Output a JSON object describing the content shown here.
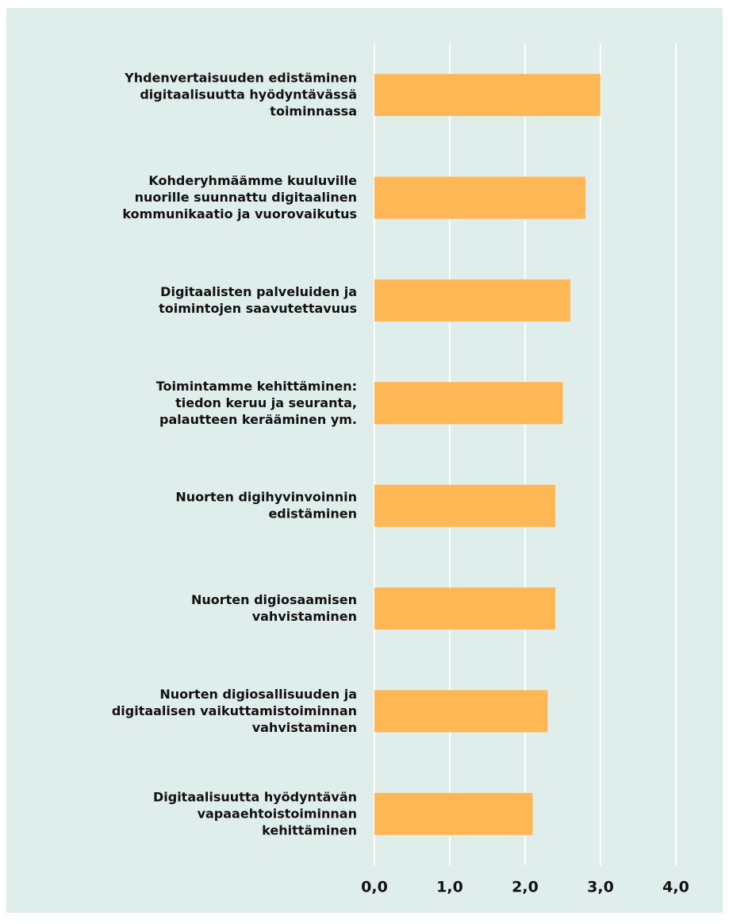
{
  "chart_data": {
    "type": "bar",
    "orientation": "horizontal",
    "categories": [
      [
        "Yhdenvertaisuuden edistäminen",
        "digitaalisuutta hyödyntävässä",
        "toiminnassa"
      ],
      [
        "Kohderyhmäämme kuuluville",
        "nuorille suunnattu digitaalinen",
        "kommunikaatio ja vuorovaikutus"
      ],
      [
        "Digitaalisten palveluiden ja",
        "toimintojen saavutettavuus"
      ],
      [
        "Toimintamme kehittäminen:",
        "tiedon keruu ja seuranta,",
        "palautteen kerääminen ym."
      ],
      [
        "Nuorten digihyvinvoinnin",
        "edistäminen"
      ],
      [
        "Nuorten digiosaamisen",
        "vahvistaminen"
      ],
      [
        "Nuorten digiosallisuuden ja",
        "digitaalisen vaikuttamistoiminnan",
        "vahvistaminen"
      ],
      [
        "Digitaalisuutta hyödyntävän",
        "vapaaehtoistoiminnan",
        "kehittäminen"
      ]
    ],
    "values": [
      3.0,
      2.8,
      2.6,
      2.5,
      2.4,
      2.4,
      2.3,
      2.1
    ],
    "color": "#ffb655",
    "xlim": [
      0,
      4
    ],
    "xticks": [
      {
        "value": 0,
        "label": "0,0"
      },
      {
        "value": 1,
        "label": "1,0"
      },
      {
        "value": 2,
        "label": "2,0"
      },
      {
        "value": 3,
        "label": "3,0"
      },
      {
        "value": 4,
        "label": "4,0"
      }
    ],
    "grid": true
  }
}
